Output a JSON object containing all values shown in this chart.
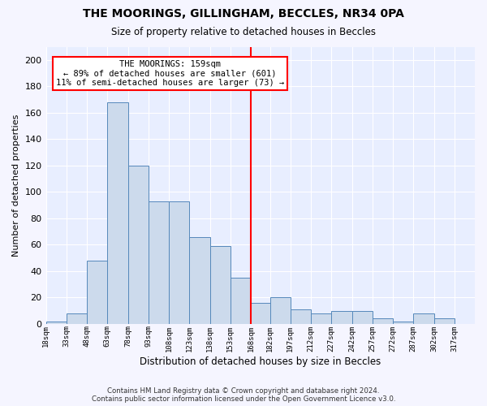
{
  "title": "THE MOORINGS, GILLINGHAM, BECCLES, NR34 0PA",
  "subtitle": "Size of property relative to detached houses in Beccles",
  "xlabel": "Distribution of detached houses by size in Beccles",
  "ylabel": "Number of detached properties",
  "footnote1": "Contains HM Land Registry data © Crown copyright and database right 2024.",
  "footnote2": "Contains public sector information licensed under the Open Government Licence v3.0.",
  "annotation_title": "THE MOORINGS: 159sqm",
  "annotation_line1": "← 89% of detached houses are smaller (601)",
  "annotation_line2": "11% of semi-detached houses are larger (73) →",
  "vline_x": 153,
  "bar_color": "#ccdaec",
  "bar_edgecolor": "#5588bb",
  "fig_facecolor": "#f5f5ff",
  "ax_facecolor": "#e8eeff",
  "grid_color": "#d0d8e8",
  "categories": [
    "18sqm",
    "33sqm",
    "48sqm",
    "63sqm",
    "78sqm",
    "93sqm",
    "108sqm",
    "123sqm",
    "138sqm",
    "153sqm",
    "168sqm",
    "182sqm",
    "197sqm",
    "212sqm",
    "227sqm",
    "242sqm",
    "257sqm",
    "272sqm",
    "287sqm",
    "302sqm",
    "317sqm"
  ],
  "bin_starts": [
    18,
    33,
    48,
    63,
    78,
    93,
    108,
    123,
    138,
    153,
    168,
    182,
    197,
    212,
    227,
    242,
    257,
    272,
    287,
    302,
    317
  ],
  "bin_width": 15,
  "values": [
    2,
    8,
    48,
    168,
    120,
    93,
    93,
    66,
    59,
    35,
    16,
    20,
    11,
    8,
    10,
    10,
    4,
    2,
    8,
    4,
    0
  ],
  "ylim": [
    0,
    210
  ],
  "yticks": [
    0,
    20,
    40,
    60,
    80,
    100,
    120,
    140,
    160,
    180,
    200
  ]
}
